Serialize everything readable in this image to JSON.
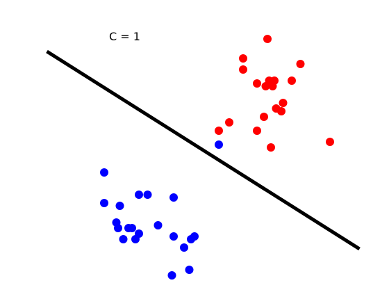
{
  "chart_data": {
    "type": "scatter",
    "annotation": "C = 1",
    "xlim": [
      0,
      10
    ],
    "ylim": [
      0,
      10
    ],
    "grid": false,
    "axes_visible": false,
    "series": [
      {
        "color": "#ff0000",
        "points": [
          [
            6.2,
            8.4
          ],
          [
            6.9,
            9.1
          ],
          [
            6.2,
            8.0
          ],
          [
            5.8,
            6.1
          ],
          [
            5.5,
            5.8
          ],
          [
            6.6,
            7.5
          ],
          [
            6.85,
            7.4
          ],
          [
            6.95,
            7.6
          ],
          [
            7.1,
            7.6
          ],
          [
            7.05,
            7.4
          ],
          [
            7.6,
            7.6
          ],
          [
            7.85,
            8.2
          ],
          [
            7.15,
            6.6
          ],
          [
            7.3,
            6.5
          ],
          [
            7.35,
            6.8
          ],
          [
            6.8,
            6.3
          ],
          [
            6.6,
            5.8
          ],
          [
            7.0,
            5.2
          ],
          [
            8.7,
            5.4
          ]
        ]
      },
      {
        "color": "#0000ff",
        "points": [
          [
            5.5,
            5.3
          ],
          [
            2.2,
            4.3
          ],
          [
            2.2,
            3.2
          ],
          [
            2.65,
            3.1
          ],
          [
            3.2,
            3.5
          ],
          [
            3.45,
            3.5
          ],
          [
            4.2,
            3.4
          ],
          [
            2.55,
            2.5
          ],
          [
            2.6,
            2.3
          ],
          [
            2.9,
            2.3
          ],
          [
            3.0,
            2.3
          ],
          [
            3.75,
            2.4
          ],
          [
            2.75,
            1.9
          ],
          [
            3.2,
            2.1
          ],
          [
            3.1,
            1.9
          ],
          [
            4.2,
            2.0
          ],
          [
            4.5,
            1.6
          ],
          [
            4.7,
            1.9
          ],
          [
            4.8,
            2.0
          ],
          [
            4.15,
            0.6
          ],
          [
            4.65,
            0.8
          ]
        ]
      }
    ],
    "decision_boundary": {
      "from": [
        0.55,
        8.65
      ],
      "to": [
        9.55,
        1.55
      ],
      "color": "#000000"
    }
  }
}
